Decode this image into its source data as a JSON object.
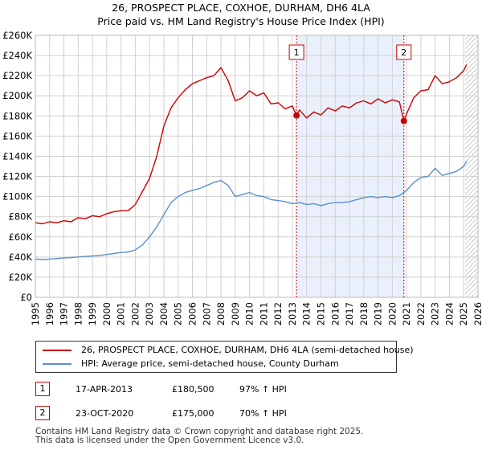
{
  "title_line1": "26, PROSPECT PLACE, COXHOE, DURHAM, DH6 4LA",
  "title_line2": "Price paid vs. HM Land Registry's House Price Index (HPI)",
  "legend": {
    "red_label": "26, PROSPECT PLACE, COXHOE, DURHAM, DH6 4LA (semi-detached house)",
    "blue_label": "HPI: Average price, semi-detached house, County Durham"
  },
  "annotations": [
    {
      "num": "1",
      "date": "17-APR-2013",
      "price": "£180,500",
      "hpi": "97% ↑ HPI"
    },
    {
      "num": "2",
      "date": "23-OCT-2020",
      "price": "£175,000",
      "hpi": "70% ↑ HPI"
    }
  ],
  "footer": {
    "line1": "Contains HM Land Registry data © Crown copyright and database right 2025.",
    "line2": "This data is licensed under the Open Government Licence v3.0."
  },
  "colors": {
    "red": "#cc0000",
    "blue": "#5b8fcc",
    "shade": "#eaf0fb",
    "grid": "#d0d0d0"
  },
  "chart_data": {
    "type": "line",
    "title": "26, PROSPECT PLACE, COXHOE, DURHAM, DH6 4LA",
    "subtitle": "Price paid vs. HM Land Registry's House Price Index (HPI)",
    "xlabel": "",
    "ylabel": "",
    "xlim": [
      1995,
      2026
    ],
    "ylim": [
      0,
      260000
    ],
    "y_ticks": [
      0,
      20000,
      40000,
      60000,
      80000,
      100000,
      120000,
      140000,
      160000,
      180000,
      200000,
      220000,
      240000,
      260000
    ],
    "y_tick_labels": [
      "£0",
      "£20K",
      "£40K",
      "£60K",
      "£80K",
      "£100K",
      "£120K",
      "£140K",
      "£160K",
      "£180K",
      "£200K",
      "£220K",
      "£240K",
      "£260K"
    ],
    "x_ticks": [
      1995,
      1996,
      1997,
      1998,
      1999,
      2000,
      2001,
      2002,
      2003,
      2004,
      2005,
      2006,
      2007,
      2008,
      2009,
      2010,
      2011,
      2012,
      2013,
      2014,
      2015,
      2016,
      2017,
      2018,
      2019,
      2020,
      2021,
      2022,
      2023,
      2024,
      2025,
      2026
    ],
    "grid": true,
    "shaded_region": [
      2013.29,
      2020.81
    ],
    "hatched_from": 2025.1,
    "series": [
      {
        "name": "26, PROSPECT PLACE, COXHOE, DURHAM, DH6 4LA (semi-detached house)",
        "color": "#cc0000",
        "x": [
          1995.0,
          1995.5,
          1996.0,
          1996.5,
          1997.0,
          1997.5,
          1998.0,
          1998.5,
          1999.0,
          1999.5,
          2000.0,
          2000.5,
          2001.0,
          2001.5,
          2002.0,
          2002.5,
          2003.0,
          2003.5,
          2004.0,
          2004.5,
          2005.0,
          2005.5,
          2006.0,
          2006.5,
          2007.0,
          2007.5,
          2008.0,
          2008.5,
          2009.0,
          2009.5,
          2010.0,
          2010.5,
          2011.0,
          2011.5,
          2012.0,
          2012.5,
          2013.0,
          2013.29,
          2013.5,
          2014.0,
          2014.5,
          2015.0,
          2015.5,
          2016.0,
          2016.5,
          2017.0,
          2017.5,
          2018.0,
          2018.5,
          2019.0,
          2019.5,
          2020.0,
          2020.5,
          2020.81,
          2021.0,
          2021.5,
          2022.0,
          2022.5,
          2023.0,
          2023.5,
          2024.0,
          2024.5,
          2025.0,
          2025.2
        ],
        "values": [
          74000,
          73000,
          75000,
          74000,
          76000,
          75000,
          79000,
          78000,
          81000,
          80000,
          83000,
          85000,
          86000,
          86000,
          92000,
          105000,
          118000,
          140000,
          170000,
          188000,
          198000,
          206000,
          212000,
          215000,
          218000,
          220000,
          228000,
          215000,
          195000,
          198000,
          205000,
          200000,
          203000,
          192000,
          193000,
          187000,
          190000,
          180500,
          186000,
          178000,
          184000,
          181000,
          188000,
          185000,
          190000,
          188000,
          193000,
          195000,
          192000,
          197000,
          193000,
          196000,
          194000,
          175000,
          182000,
          198000,
          205000,
          206000,
          220000,
          212000,
          214000,
          218000,
          225000,
          231000
        ]
      },
      {
        "name": "HPI: Average price, semi-detached house, County Durham",
        "color": "#5b8fcc",
        "x": [
          1995.0,
          1995.5,
          1996.0,
          1996.5,
          1997.0,
          1997.5,
          1998.0,
          1998.5,
          1999.0,
          1999.5,
          2000.0,
          2000.5,
          2001.0,
          2001.5,
          2002.0,
          2002.5,
          2003.0,
          2003.5,
          2004.0,
          2004.5,
          2005.0,
          2005.5,
          2006.0,
          2006.5,
          2007.0,
          2007.5,
          2008.0,
          2008.5,
          2009.0,
          2009.5,
          2010.0,
          2010.5,
          2011.0,
          2011.5,
          2012.0,
          2012.5,
          2013.0,
          2013.5,
          2014.0,
          2014.5,
          2015.0,
          2015.5,
          2016.0,
          2016.5,
          2017.0,
          2017.5,
          2018.0,
          2018.5,
          2019.0,
          2019.5,
          2020.0,
          2020.5,
          2021.0,
          2021.5,
          2022.0,
          2022.5,
          2023.0,
          2023.5,
          2024.0,
          2024.5,
          2025.0,
          2025.2
        ],
        "values": [
          38000,
          37500,
          38000,
          38500,
          39000,
          39500,
          40000,
          40500,
          41000,
          41500,
          42500,
          43500,
          44500,
          45000,
          47000,
          52000,
          60000,
          70000,
          82000,
          94000,
          100000,
          104000,
          106000,
          108000,
          111000,
          114000,
          116000,
          111000,
          100000,
          102000,
          104000,
          101000,
          100000,
          97000,
          96000,
          95000,
          93000,
          94000,
          92000,
          93000,
          91000,
          93000,
          94000,
          94000,
          95000,
          97000,
          99000,
          100000,
          99000,
          100000,
          99000,
          101000,
          106000,
          114000,
          119000,
          120000,
          128000,
          121000,
          123000,
          125000,
          130000,
          135000
        ]
      }
    ],
    "sales": [
      {
        "label": "1",
        "x": 2013.29,
        "value": 180500
      },
      {
        "label": "2",
        "x": 2020.81,
        "value": 175000
      }
    ]
  }
}
